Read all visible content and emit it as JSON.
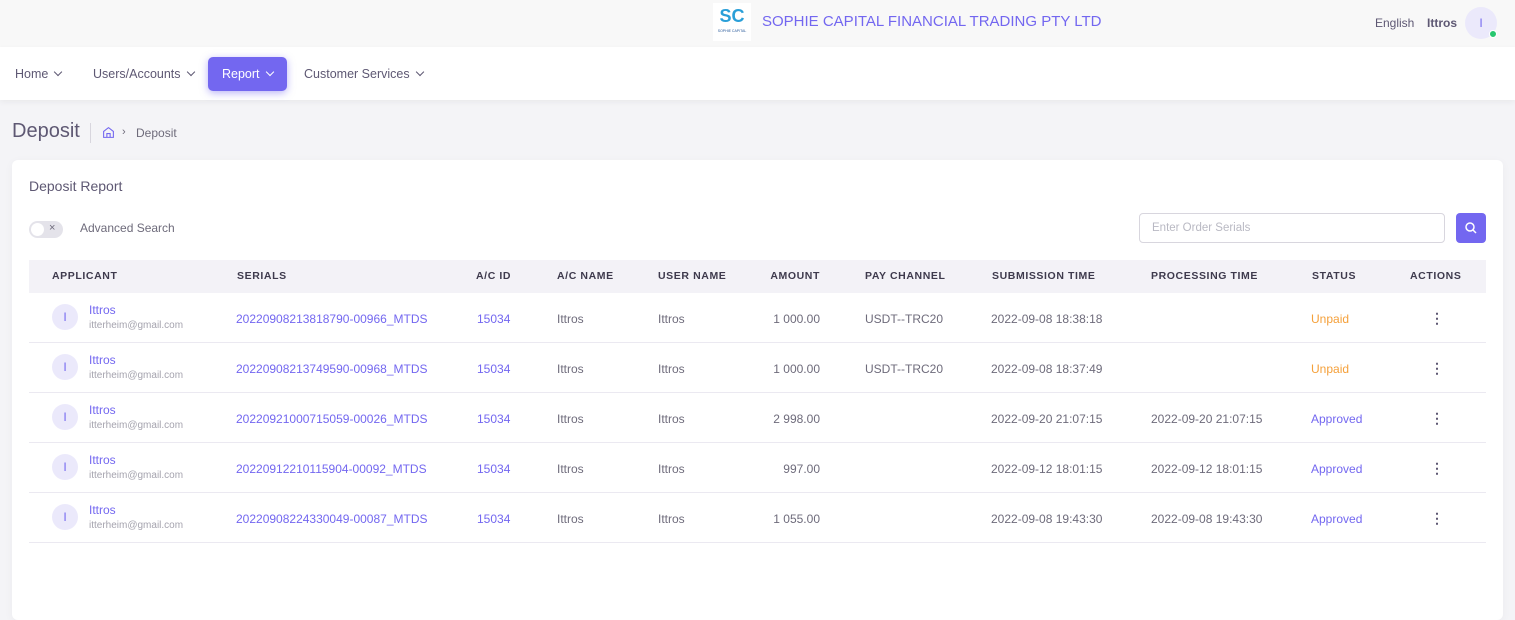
{
  "header": {
    "logo_mark": "SC",
    "logo_caption": "SOPHIE CAPITAL",
    "company": "SOPHIE CAPITAL FINANCIAL TRADING PTY LTD",
    "language": "English",
    "user": "Ittros",
    "avatar": "I"
  },
  "nav": [
    "Home",
    "Users/Accounts",
    "Report",
    "Customer Services"
  ],
  "nav_active": 2,
  "page": {
    "title": "Deposit",
    "breadcrumb": "Deposit"
  },
  "card": {
    "title": "Deposit Report",
    "advanced_search": "Advanced Search",
    "search_placeholder": "Enter Order Serials"
  },
  "table": {
    "columns": [
      "APPLICANT",
      "SERIALS",
      "A/C ID",
      "A/C NAME",
      "USER NAME",
      "AMOUNT",
      "PAY CHANNEL",
      "SUBMISSION TIME",
      "PROCESSING TIME",
      "STATUS",
      "ACTIONS"
    ],
    "rows": [
      {
        "avatar": "I",
        "name": "Ittros",
        "email": "itterheim@gmail.com",
        "serial": "20220908213818790-00966_MTDS",
        "ac_id": "15034",
        "ac_name": "Ittros",
        "user_name": "Ittros",
        "amount": "1 000.00",
        "pay_channel": "USDT--TRC20",
        "submission_time": "2022-09-08 18:38:18",
        "status": "Unpaid",
        "status_color": "#f5a03a"
      },
      {
        "avatar": "I",
        "name": "Ittros",
        "email": "itterheim@gmail.com",
        "serial": "20220908213749590-00968_MTDS",
        "ac_id": "15034",
        "ac_name": "Ittros",
        "user_name": "Ittros",
        "amount": "1 000.00",
        "pay_channel": "USDT--TRC20",
        "submission_time": "2022-09-08 18:37:49",
        "status": "Unpaid",
        "status_color": "#f5a03a"
      },
      {
        "avatar": "I",
        "name": "Ittros",
        "email": "itterheim@gmail.com",
        "serial": "20220921000715059-00026_MTDS",
        "ac_id": "15034",
        "ac_name": "Ittros",
        "user_name": "Ittros",
        "amount": "2 998.00",
        "submission_time": "2022-09-20 21:07:15",
        "processing_time": "2022-09-20 21:07:15",
        "status": "Approved",
        "status_color": "#7367f0"
      },
      {
        "avatar": "I",
        "name": "Ittros",
        "email": "itterheim@gmail.com",
        "serial": "20220912210115904-00092_MTDS",
        "ac_id": "15034",
        "ac_name": "Ittros",
        "user_name": "Ittros",
        "amount": "997.00",
        "submission_time": "2022-09-12 18:01:15",
        "processing_time": "2022-09-12 18:01:15",
        "status": "Approved",
        "status_color": "#7367f0"
      },
      {
        "avatar": "I",
        "name": "Ittros",
        "email": "itterheim@gmail.com",
        "serial": "20220908224330049-00087_MTDS",
        "ac_id": "15034",
        "ac_name": "Ittros",
        "user_name": "Ittros",
        "amount": "1 055.00",
        "submission_time": "2022-09-08 19:43:30",
        "processing_time": "2022-09-08 19:43:30",
        "status": "Approved",
        "status_color": "#7367f0"
      }
    ]
  }
}
